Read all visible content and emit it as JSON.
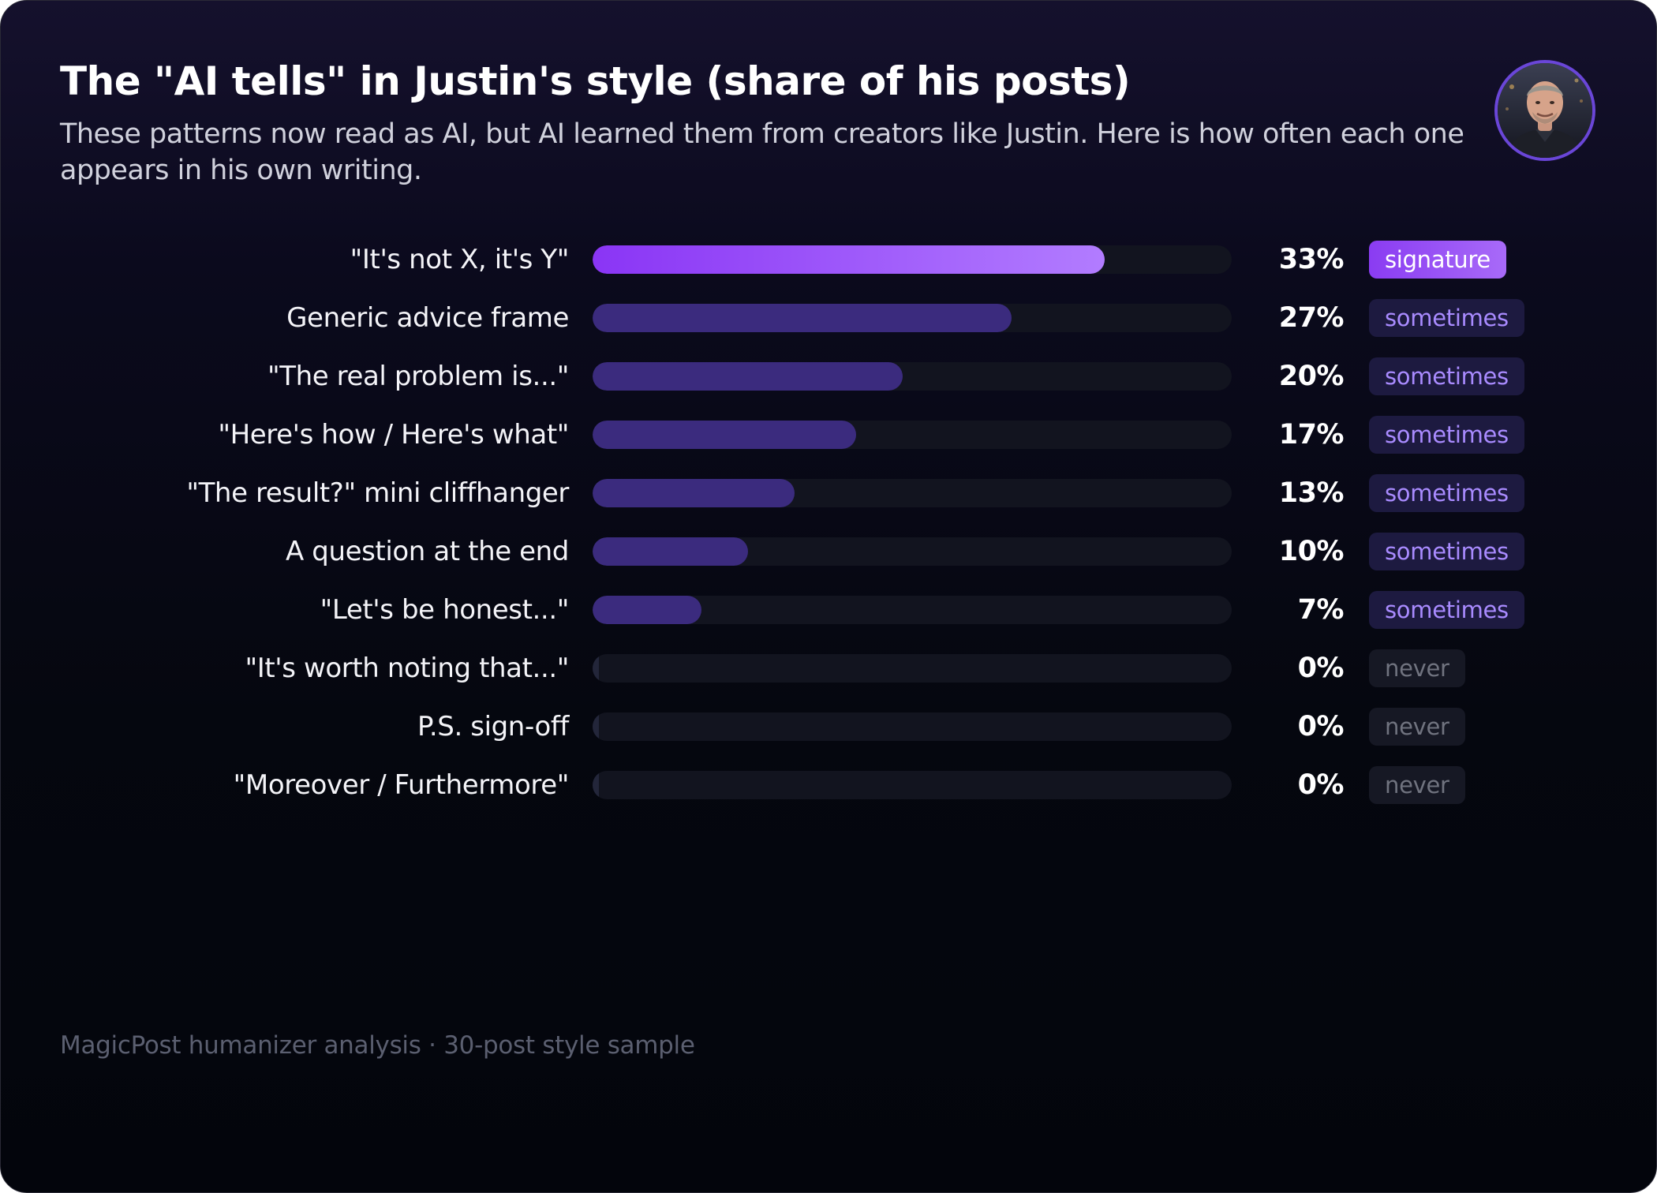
{
  "header": {
    "title": "The \"AI tells\" in Justin's style (share of his posts)",
    "subtitle": "These patterns now read as AI, but AI learned them from creators like Justin. Here is how often each one appears in his own writing."
  },
  "avatar": {
    "icon": "person-portrait-icon"
  },
  "colors": {
    "signature_fill_start": "#8a35f5",
    "signature_fill_end": "#b27cff",
    "sometimes_fill": "#3b2b7e",
    "track": "#12141f",
    "sometimes_badge_bg": "#1d1a40",
    "sometimes_badge_text": "#a98bff",
    "never_badge_bg": "#161824",
    "never_badge_text": "#70737f"
  },
  "chart_data": {
    "type": "bar",
    "orientation": "horizontal",
    "title": "The \"AI tells\" in Justin's style (share of his posts)",
    "subtitle": "These patterns now read as AI, but AI learned them from creators like Justin. Here is how often each one appears in his own writing.",
    "xlim": [
      0,
      100
    ],
    "unit": "%",
    "grid": false,
    "categories": [
      "\"It's not X, it's Y\"",
      "Generic advice frame",
      "\"The real problem is...\"",
      "\"Here's how / Here's what\"",
      "\"The result?\" mini cliffhanger",
      "A question at the end",
      "\"Let's be honest...\"",
      "\"It's worth noting that...\"",
      "P.S. sign-off",
      "\"Moreover / Furthermore\""
    ],
    "values": [
      33,
      27,
      20,
      17,
      13,
      10,
      7,
      0,
      0,
      0
    ],
    "value_labels": [
      "33%",
      "27%",
      "20%",
      "17%",
      "13%",
      "10%",
      "7%",
      "0%",
      "0%",
      "0%"
    ],
    "tags": [
      "signature",
      "sometimes",
      "sometimes",
      "sometimes",
      "sometimes",
      "sometimes",
      "sometimes",
      "never",
      "never",
      "never"
    ]
  },
  "footer": {
    "note": "MagicPost humanizer analysis · 30-post style sample"
  }
}
